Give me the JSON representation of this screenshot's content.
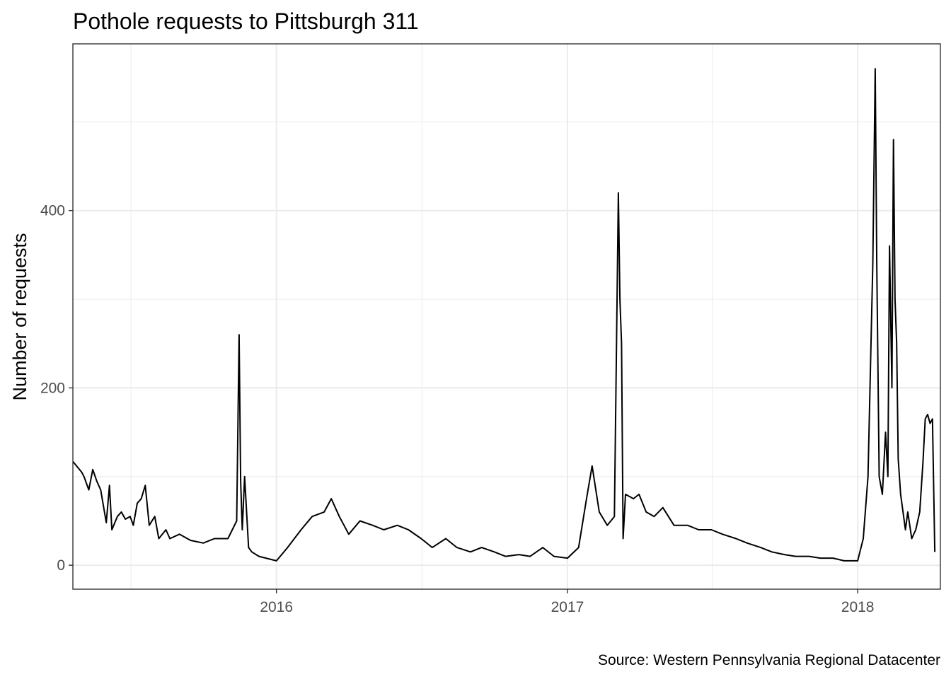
{
  "chart_data": {
    "type": "line",
    "title": "Pothole requests to Pittsburgh 311",
    "xlabel": "",
    "ylabel": "Number of requests",
    "caption": "Source: Western Pennsylvania Regional Datacenter",
    "x_ticks": [
      "2016",
      "2017",
      "2018"
    ],
    "y_ticks": [
      "0",
      "200",
      "400"
    ],
    "xlim": [
      "2015-04-20",
      "2018-04-15"
    ],
    "ylim": [
      -27,
      588
    ],
    "grid": true,
    "legend": "none",
    "line_color": "#000000",
    "series": [
      {
        "x": [
          "2015-04-20",
          "2015-05-01",
          "2015-05-04",
          "2015-05-10",
          "2015-05-15",
          "2015-05-20",
          "2015-05-25",
          "2015-06-01",
          "2015-06-05",
          "2015-06-08",
          "2015-06-15",
          "2015-06-20",
          "2015-06-25",
          "2015-07-01",
          "2015-07-05",
          "2015-07-10",
          "2015-07-15",
          "2015-07-20",
          "2015-07-25",
          "2015-08-01",
          "2015-08-06",
          "2015-08-15",
          "2015-08-20",
          "2015-09-01",
          "2015-09-15",
          "2015-10-01",
          "2015-10-15",
          "2015-11-01",
          "2015-11-12",
          "2015-11-15",
          "2015-11-17",
          "2015-11-19",
          "2015-11-22",
          "2015-11-27",
          "2015-12-01",
          "2015-12-10",
          "2016-01-01",
          "2016-01-15",
          "2016-02-01",
          "2016-02-15",
          "2016-03-01",
          "2016-03-10",
          "2016-03-20",
          "2016-04-01",
          "2016-04-15",
          "2016-05-01",
          "2016-05-15",
          "2016-06-01",
          "2016-06-15",
          "2016-07-01",
          "2016-07-15",
          "2016-08-01",
          "2016-08-15",
          "2016-09-01",
          "2016-09-15",
          "2016-10-01",
          "2016-10-15",
          "2016-11-01",
          "2016-11-15",
          "2016-12-01",
          "2016-12-15",
          "2017-01-01",
          "2017-01-15",
          "2017-01-25",
          "2017-02-01",
          "2017-02-10",
          "2017-02-20",
          "2017-03-01",
          "2017-03-06",
          "2017-03-08",
          "2017-03-10",
          "2017-03-12",
          "2017-03-15",
          "2017-03-25",
          "2017-04-01",
          "2017-04-10",
          "2017-04-20",
          "2017-05-01",
          "2017-05-15",
          "2017-06-01",
          "2017-06-15",
          "2017-07-01",
          "2017-07-15",
          "2017-08-01",
          "2017-08-15",
          "2017-09-01",
          "2017-09-15",
          "2017-10-01",
          "2017-10-15",
          "2017-11-01",
          "2017-11-15",
          "2017-12-01",
          "2017-12-15",
          "2018-01-01",
          "2018-01-08",
          "2018-01-14",
          "2018-01-20",
          "2018-01-23",
          "2018-01-25",
          "2018-01-28",
          "2018-02-01",
          "2018-02-05",
          "2018-02-08",
          "2018-02-10",
          "2018-02-13",
          "2018-02-15",
          "2018-02-17",
          "2018-02-19",
          "2018-02-21",
          "2018-02-24",
          "2018-02-27",
          "2018-03-02",
          "2018-03-05",
          "2018-03-10",
          "2018-03-15",
          "2018-03-20",
          "2018-03-24",
          "2018-03-27",
          "2018-03-30",
          "2018-04-02",
          "2018-04-05",
          "2018-04-08"
        ],
        "y": [
          117,
          105,
          100,
          85,
          108,
          95,
          85,
          48,
          90,
          40,
          55,
          60,
          52,
          55,
          45,
          70,
          75,
          90,
          45,
          55,
          30,
          40,
          30,
          35,
          28,
          25,
          30,
          30,
          50,
          260,
          95,
          40,
          100,
          20,
          15,
          10,
          5,
          20,
          40,
          55,
          60,
          75,
          55,
          35,
          50,
          45,
          40,
          45,
          40,
          30,
          20,
          30,
          20,
          15,
          20,
          15,
          10,
          12,
          10,
          20,
          10,
          8,
          20,
          75,
          112,
          60,
          45,
          55,
          420,
          300,
          250,
          30,
          80,
          75,
          80,
          60,
          55,
          65,
          45,
          45,
          40,
          40,
          35,
          30,
          25,
          20,
          15,
          12,
          10,
          10,
          8,
          8,
          5,
          5,
          30,
          100,
          340,
          560,
          340,
          100,
          80,
          150,
          100,
          360,
          200,
          480,
          300,
          250,
          120,
          80,
          60,
          40,
          60,
          30,
          40,
          60,
          115,
          165,
          170,
          160,
          165,
          15
        ]
      }
    ]
  }
}
